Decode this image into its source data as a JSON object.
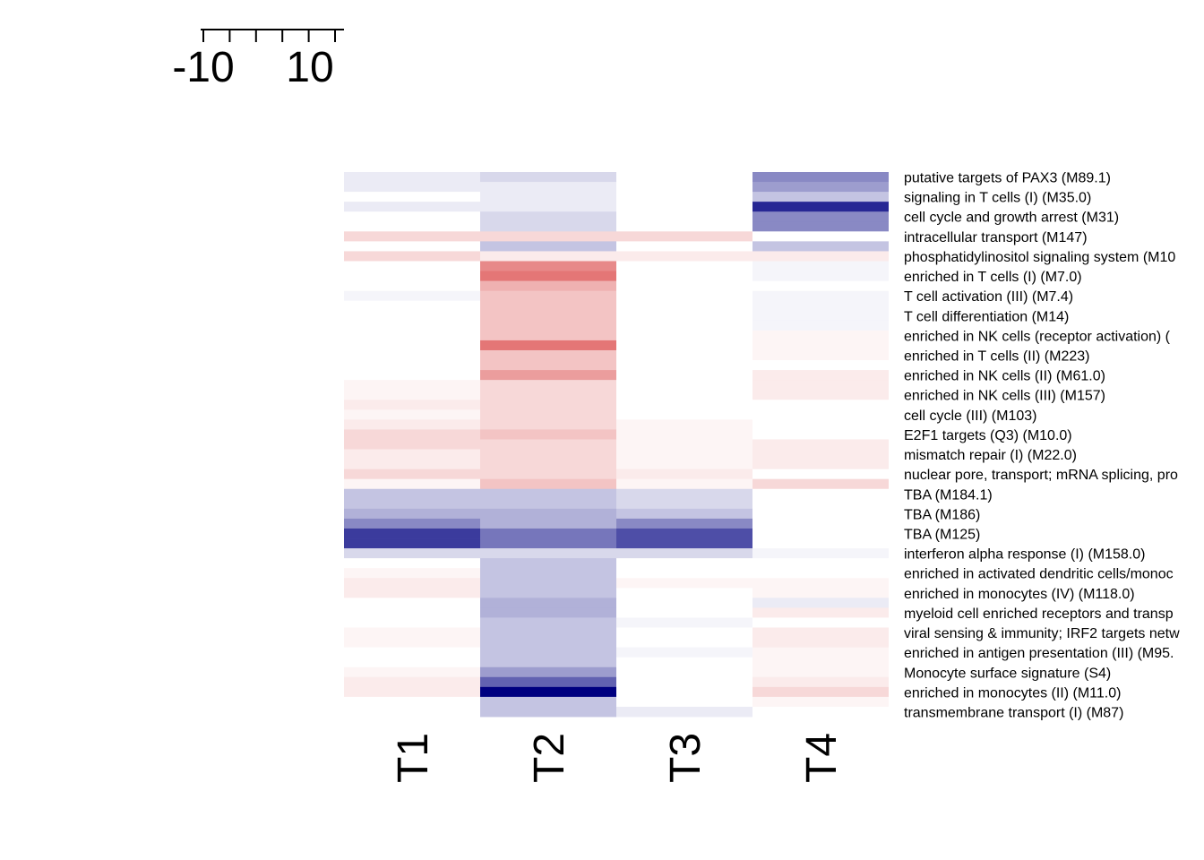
{
  "chart_data": {
    "type": "heatmap",
    "columns": [
      "T1",
      "T2",
      "T3",
      "T4"
    ],
    "rows": [
      {
        "label": "putative targets of PAX3 (M89.1)",
        "values": [
          -1,
          -2,
          0,
          -6
        ]
      },
      {
        "label": "",
        "values": [
          -1,
          -1,
          0,
          -5
        ]
      },
      {
        "label": "signaling in T cells (I) (M35.0)",
        "values": [
          0,
          -1,
          0,
          -3
        ]
      },
      {
        "label": "",
        "values": [
          -1,
          -1,
          0,
          -11
        ]
      },
      {
        "label": "cell cycle and growth arrest (M31)",
        "values": [
          0,
          -2,
          0,
          -6
        ]
      },
      {
        "label": "",
        "values": [
          0,
          -2,
          0,
          -6
        ]
      },
      {
        "label": "intracellular transport (M147)",
        "values": [
          2,
          2,
          2,
          0
        ]
      },
      {
        "label": "",
        "values": [
          0,
          -3,
          0,
          -3
        ]
      },
      {
        "label": "phosphatidylinositol signaling system (M10",
        "values": [
          2,
          1,
          1,
          1
        ]
      },
      {
        "label": "",
        "values": [
          0,
          6,
          0,
          -0.5
        ]
      },
      {
        "label": "enriched in T cells (I) (M7.0)",
        "values": [
          0,
          7,
          0,
          -0.5
        ]
      },
      {
        "label": "",
        "values": [
          0,
          4,
          0,
          0
        ]
      },
      {
        "label": "T cell activation (III) (M7.4)",
        "values": [
          -0.5,
          3,
          0,
          -0.5
        ]
      },
      {
        "label": "",
        "values": [
          0,
          3,
          0,
          -0.5
        ]
      },
      {
        "label": "T cell differentiation (M14)",
        "values": [
          0,
          3,
          0,
          -0.5
        ]
      },
      {
        "label": "",
        "values": [
          0,
          3,
          0,
          -0.5
        ]
      },
      {
        "label": "enriched in NK cells (receptor activation) (",
        "values": [
          0,
          3,
          0,
          0.5
        ]
      },
      {
        "label": "",
        "values": [
          0,
          7,
          0,
          0.5
        ]
      },
      {
        "label": "enriched in T cells (II) (M223)",
        "values": [
          0,
          3,
          0,
          0.5
        ]
      },
      {
        "label": "",
        "values": [
          0,
          3,
          0,
          0
        ]
      },
      {
        "label": "enriched in NK cells (II) (M61.0)",
        "values": [
          0,
          5,
          0,
          1
        ]
      },
      {
        "label": "",
        "values": [
          0.5,
          2,
          0,
          1
        ]
      },
      {
        "label": "enriched in NK cells (III) (M157)",
        "values": [
          0.5,
          2,
          0,
          1
        ]
      },
      {
        "label": "",
        "values": [
          1,
          2,
          0,
          0
        ]
      },
      {
        "label": "cell cycle (III) (M103)",
        "values": [
          0.5,
          2,
          0,
          0
        ]
      },
      {
        "label": "",
        "values": [
          1,
          2,
          0.5,
          0
        ]
      },
      {
        "label": "E2F1 targets (Q3) (M10.0)",
        "values": [
          2,
          3,
          0.5,
          0
        ]
      },
      {
        "label": "",
        "values": [
          2,
          2,
          0.5,
          1
        ]
      },
      {
        "label": "mismatch repair (I) (M22.0)",
        "values": [
          1,
          2,
          0.5,
          1
        ]
      },
      {
        "label": "",
        "values": [
          1,
          2,
          0.5,
          1
        ]
      },
      {
        "label": "nuclear pore, transport; mRNA splicing, pro",
        "values": [
          2,
          2,
          1,
          0
        ]
      },
      {
        "label": "",
        "values": [
          0.5,
          3,
          0.5,
          2
        ]
      },
      {
        "label": "TBA (M184.1)",
        "values": [
          -3,
          -3,
          -2,
          0
        ]
      },
      {
        "label": "",
        "values": [
          -3,
          -3,
          -2,
          0
        ]
      },
      {
        "label": "TBA (M186)",
        "values": [
          -4,
          -4,
          -3,
          0
        ]
      },
      {
        "label": "",
        "values": [
          -6,
          -4,
          -6,
          0
        ]
      },
      {
        "label": "TBA (M125)",
        "values": [
          -10,
          -7,
          -9,
          0
        ]
      },
      {
        "label": "",
        "values": [
          -10,
          -7,
          -9,
          0
        ]
      },
      {
        "label": "interferon alpha response (I) (M158.0)",
        "values": [
          -2,
          -2,
          -2,
          -0.5
        ]
      },
      {
        "label": "",
        "values": [
          0,
          -3,
          0,
          0
        ]
      },
      {
        "label": "enriched in activated dendritic cells/monoc",
        "values": [
          0.5,
          -3,
          0,
          0
        ]
      },
      {
        "label": "",
        "values": [
          1,
          -3,
          0.5,
          0.5
        ]
      },
      {
        "label": "enriched in monocytes (IV) (M118.0)",
        "values": [
          1,
          -3,
          0,
          0.5
        ]
      },
      {
        "label": "",
        "values": [
          0,
          -4,
          0,
          -1
        ]
      },
      {
        "label": "myeloid cell enriched receptors and transp",
        "values": [
          0,
          -4,
          0,
          1
        ]
      },
      {
        "label": "",
        "values": [
          0,
          -3,
          -0.5,
          0
        ]
      },
      {
        "label": "viral sensing & immunity; IRF2 targets netw",
        "values": [
          0.5,
          -3,
          0,
          1
        ]
      },
      {
        "label": "",
        "values": [
          0.5,
          -3,
          0,
          1
        ]
      },
      {
        "label": "enriched in antigen presentation (III) (M95.",
        "values": [
          0,
          -3,
          -0.5,
          0.5
        ]
      },
      {
        "label": "",
        "values": [
          0,
          -3,
          0,
          0.5
        ]
      },
      {
        "label": "Monocyte surface signature (S4)",
        "values": [
          0.5,
          -5,
          0,
          0.5
        ]
      },
      {
        "label": "",
        "values": [
          1,
          -8,
          0,
          1
        ]
      },
      {
        "label": "enriched in monocytes (II) (M11.0)",
        "values": [
          1,
          -13,
          0,
          2
        ]
      },
      {
        "label": "",
        "values": [
          0,
          -3,
          0,
          0.5
        ]
      },
      {
        "label": "transmembrane transport (I) (M87)",
        "values": [
          0,
          -3,
          -1,
          0
        ]
      }
    ],
    "color_scale": {
      "min": -13,
      "max": 13,
      "low_color": "#000080",
      "mid_color": "#FFFFFF",
      "high_color": "#CC0000",
      "ticks": [
        "-10",
        "10"
      ]
    }
  }
}
